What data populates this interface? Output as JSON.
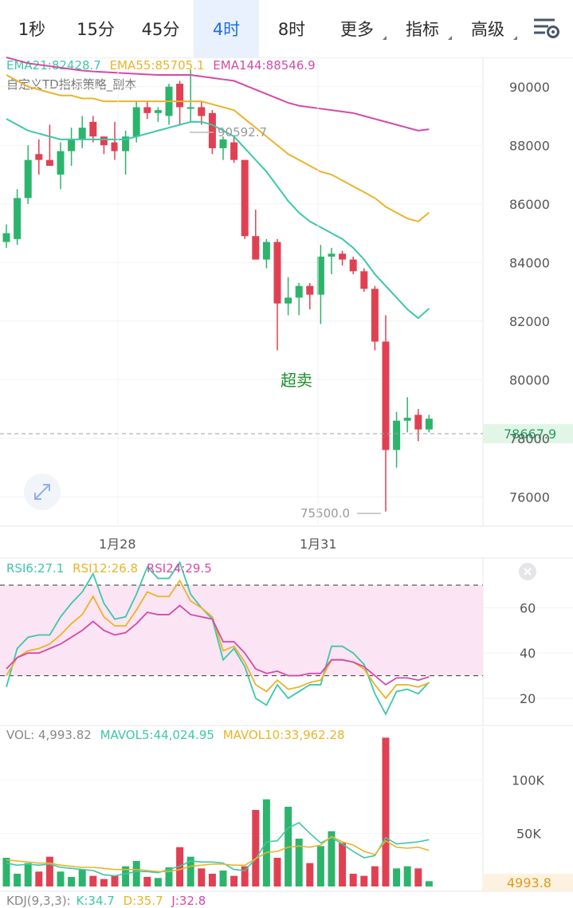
{
  "tabs": [
    {
      "label": "1秒",
      "active": false,
      "dropdown": false
    },
    {
      "label": "15分",
      "active": false,
      "dropdown": false
    },
    {
      "label": "45分",
      "active": false,
      "dropdown": false
    },
    {
      "label": "4时",
      "active": true,
      "dropdown": false
    },
    {
      "label": "8时",
      "active": false,
      "dropdown": false
    },
    {
      "label": "更多",
      "active": false,
      "dropdown": true
    },
    {
      "label": "指标",
      "active": false,
      "dropdown": true
    },
    {
      "label": "高级",
      "active": false,
      "dropdown": true
    }
  ],
  "settings_icon": "chart-settings-icon",
  "expand_icon": "expand-arrows-icon",
  "close_icon": "close-icon",
  "colors": {
    "up": "#2db46c",
    "down": "#e04152",
    "ema21": "#3cc8a8",
    "ema55": "#eab42a",
    "ema144": "#d44aa8",
    "rsi_band": "#fbe4f3"
  },
  "main": {
    "legend": [
      {
        "text": "EMA21:82428.7",
        "color": "#3cc8a8"
      },
      {
        "text": "EMA55:85705.1",
        "color": "#eab42a"
      },
      {
        "text": "EMA144:88546.9",
        "color": "#d44aa8"
      }
    ],
    "strategy_label": "自定义TD指标策略_副本",
    "annotation": "超卖",
    "high_label": "90592.7",
    "low_label": "75500.0",
    "last_price": "78667.9",
    "y_ticks": [
      "90000",
      "88000",
      "86000",
      "84000",
      "82000",
      "80000",
      "78000",
      "76000"
    ],
    "x_ticks": [
      "1月28",
      "1月31"
    ]
  },
  "chart_data": [
    {
      "type": "candlestick",
      "title": "",
      "ylim": [
        75000,
        91000
      ],
      "y_ticks": [
        76000,
        78000,
        80000,
        82000,
        84000,
        86000,
        88000,
        90000
      ],
      "x_ticks": [
        "1月28",
        "1月31"
      ],
      "candles": [
        {
          "o": 84700,
          "h": 85300,
          "l": 84500,
          "c": 85000
        },
        {
          "o": 84800,
          "h": 86500,
          "l": 84600,
          "c": 86200
        },
        {
          "o": 86200,
          "h": 88000,
          "l": 86000,
          "c": 87500
        },
        {
          "o": 87700,
          "h": 88200,
          "l": 87000,
          "c": 87500
        },
        {
          "o": 87500,
          "h": 88700,
          "l": 87300,
          "c": 87300
        },
        {
          "o": 87000,
          "h": 88100,
          "l": 86500,
          "c": 87800
        },
        {
          "o": 87800,
          "h": 88600,
          "l": 87300,
          "c": 88200
        },
        {
          "o": 88200,
          "h": 89000,
          "l": 87900,
          "c": 88600
        },
        {
          "o": 88800,
          "h": 89000,
          "l": 88100,
          "c": 88300
        },
        {
          "o": 88300,
          "h": 88300,
          "l": 87700,
          "c": 88000
        },
        {
          "o": 88100,
          "h": 88800,
          "l": 87500,
          "c": 87800
        },
        {
          "o": 87800,
          "h": 88500,
          "l": 87000,
          "c": 88300
        },
        {
          "o": 88300,
          "h": 89500,
          "l": 88100,
          "c": 89300
        },
        {
          "o": 89300,
          "h": 89500,
          "l": 88900,
          "c": 89100
        },
        {
          "o": 89100,
          "h": 89300,
          "l": 88800,
          "c": 89200
        },
        {
          "o": 89000,
          "h": 90100,
          "l": 88700,
          "c": 90000
        },
        {
          "o": 90100,
          "h": 90200,
          "l": 88700,
          "c": 89300
        },
        {
          "o": 89300,
          "h": 90592.7,
          "l": 88800,
          "c": 89300
        },
        {
          "o": 89300,
          "h": 89500,
          "l": 88700,
          "c": 89000
        },
        {
          "o": 89100,
          "h": 89200,
          "l": 87700,
          "c": 87900
        },
        {
          "o": 87900,
          "h": 88300,
          "l": 87500,
          "c": 88200
        },
        {
          "o": 88100,
          "h": 88300,
          "l": 87400,
          "c": 87500
        },
        {
          "o": 87500,
          "h": 87500,
          "l": 84800,
          "c": 84900
        },
        {
          "o": 84900,
          "h": 85800,
          "l": 84100,
          "c": 84100
        },
        {
          "o": 84100,
          "h": 84800,
          "l": 83800,
          "c": 84700
        },
        {
          "o": 84700,
          "h": 84800,
          "l": 81000,
          "c": 82600
        },
        {
          "o": 82600,
          "h": 83500,
          "l": 82200,
          "c": 82800
        },
        {
          "o": 82800,
          "h": 83300,
          "l": 82200,
          "c": 83200
        },
        {
          "o": 83200,
          "h": 83300,
          "l": 82400,
          "c": 82900
        },
        {
          "o": 82900,
          "h": 84600,
          "l": 81900,
          "c": 84200
        },
        {
          "o": 84200,
          "h": 84500,
          "l": 83600,
          "c": 84300
        },
        {
          "o": 84300,
          "h": 84400,
          "l": 83900,
          "c": 84100
        },
        {
          "o": 84100,
          "h": 84200,
          "l": 83600,
          "c": 83700
        },
        {
          "o": 83700,
          "h": 83800,
          "l": 83000,
          "c": 83100
        },
        {
          "o": 83100,
          "h": 83200,
          "l": 81000,
          "c": 81300
        },
        {
          "o": 81300,
          "h": 82200,
          "l": 75500,
          "c": 77600
        },
        {
          "o": 77600,
          "h": 78900,
          "l": 77000,
          "c": 78600
        },
        {
          "o": 78600,
          "h": 79400,
          "l": 78200,
          "c": 78700
        },
        {
          "o": 78800,
          "h": 79000,
          "l": 77900,
          "c": 78300
        },
        {
          "o": 78300,
          "h": 78800,
          "l": 78200,
          "c": 78667.9
        }
      ],
      "series": [
        {
          "name": "EMA21",
          "values": [
            88900,
            88700,
            88500,
            88400,
            88300,
            88200,
            88200,
            88200,
            88200,
            88200,
            88200,
            88200,
            88300,
            88400,
            88500,
            88600,
            88700,
            88800,
            88800,
            88700,
            88500,
            88300,
            87900,
            87500,
            87100,
            86600,
            86100,
            85700,
            85400,
            85200,
            85000,
            84800,
            84500,
            84100,
            83600,
            83200,
            82800,
            82400,
            82100,
            82428.7
          ]
        },
        {
          "name": "EMA55",
          "values": [
            90400,
            90200,
            90000,
            89900,
            89800,
            89700,
            89700,
            89600,
            89600,
            89500,
            89500,
            89500,
            89500,
            89500,
            89500,
            89500,
            89500,
            89500,
            89500,
            89400,
            89300,
            89200,
            88900,
            88600,
            88300,
            88000,
            87700,
            87500,
            87300,
            87100,
            87000,
            86800,
            86600,
            86400,
            86200,
            85900,
            85700,
            85500,
            85400,
            85705.1
          ]
        },
        {
          "name": "EMA144",
          "values": [
            91000,
            90900,
            90800,
            90750,
            90700,
            90650,
            90600,
            90550,
            90520,
            90500,
            90480,
            90460,
            90440,
            90420,
            90400,
            90400,
            90400,
            90400,
            90350,
            90300,
            90250,
            90200,
            90050,
            89900,
            89750,
            89600,
            89450,
            89350,
            89300,
            89250,
            89200,
            89150,
            89100,
            89000,
            88900,
            88800,
            88700,
            88600,
            88500,
            88546.9
          ]
        }
      ]
    },
    {
      "type": "line",
      "title": "",
      "ylim": [
        8,
        82
      ],
      "y_ticks": [
        20,
        40,
        60
      ],
      "reference_lines": [
        30,
        70
      ],
      "series": [
        {
          "name": "RSI6",
          "values": [
            25,
            42,
            47,
            48,
            48,
            56,
            62,
            67,
            75,
            62,
            55,
            56,
            66,
            78,
            73,
            73,
            80,
            66,
            60,
            55,
            37,
            42,
            34,
            20,
            17,
            26,
            20,
            23,
            26,
            26,
            43,
            43,
            40,
            35,
            22,
            13,
            23,
            24,
            22,
            27.1
          ]
        },
        {
          "name": "RSI12",
          "values": [
            30,
            38,
            41,
            42,
            44,
            48,
            53,
            57,
            65,
            56,
            52,
            52,
            59,
            67,
            65,
            65,
            72,
            63,
            60,
            56,
            41,
            43,
            36,
            26,
            23,
            28,
            24,
            25,
            27,
            28,
            37,
            37,
            36,
            33,
            26,
            20,
            26,
            26,
            25,
            26.8
          ]
        },
        {
          "name": "RSI24",
          "values": [
            33,
            38,
            40,
            40,
            42,
            44,
            47,
            50,
            54,
            50,
            48,
            49,
            53,
            58,
            57,
            57,
            61,
            57,
            56,
            55,
            45,
            45,
            40,
            33,
            31,
            32,
            30,
            30,
            31,
            31,
            37,
            37,
            36,
            34,
            30,
            26,
            29,
            29,
            28,
            29.5
          ]
        }
      ]
    },
    {
      "type": "bar",
      "title": "",
      "ylim": [
        0,
        150000
      ],
      "y_ticks": [
        50000,
        100000
      ],
      "y_tick_labels": [
        "50K",
        "100K"
      ],
      "last_volume_label": "4993.8",
      "values": [
        27000,
        12000,
        22000,
        14000,
        28000,
        14000,
        9000,
        16000,
        10000,
        7000,
        10000,
        19000,
        24000,
        9000,
        8000,
        18000,
        37000,
        28000,
        17000,
        12000,
        15000,
        10000,
        19000,
        72000,
        82000,
        27000,
        75000,
        45000,
        22000,
        38000,
        52000,
        41000,
        12000,
        10000,
        19000,
        140000,
        17000,
        19000,
        17000,
        4993.82
      ],
      "series": [
        {
          "name": "MAVOL5",
          "values": [
            22000,
            20000,
            21000,
            20000,
            21000,
            18000,
            17000,
            16000,
            15000,
            11000,
            10000,
            12000,
            14000,
            14000,
            13000,
            16000,
            19000,
            24000,
            23000,
            23000,
            22000,
            16000,
            15000,
            26000,
            42000,
            43000,
            55000,
            60000,
            50000,
            41000,
            46000,
            40000,
            33000,
            27000,
            29000,
            46000,
            40000,
            41000,
            42000,
            44024.95
          ]
        },
        {
          "name": "MAVOL10",
          "values": [
            25000,
            24000,
            23000,
            22000,
            22000,
            20000,
            19000,
            18000,
            18000,
            17000,
            16000,
            16000,
            16000,
            15000,
            14000,
            14000,
            16000,
            19000,
            20000,
            21000,
            21000,
            20000,
            20000,
            26000,
            32000,
            33000,
            37000,
            38000,
            37000,
            39000,
            47000,
            42000,
            39000,
            33000,
            30000,
            43000,
            37000,
            36000,
            37000,
            33962.28
          ]
        }
      ]
    }
  ],
  "rsi": {
    "legend": [
      {
        "text": "RSI6:27.1",
        "color": "#3cc8a8"
      },
      {
        "text": "RSI12:26.8",
        "color": "#eab42a"
      },
      {
        "text": "RSI24:29.5",
        "color": "#d44aa8"
      }
    ],
    "y_ticks": [
      "60",
      "40",
      "20"
    ]
  },
  "vol": {
    "legend": [
      {
        "text": "VOL: 4,993.82",
        "color": "#888888"
      },
      {
        "text": "MAVOL5:44,024.95",
        "color": "#3cc8a8"
      },
      {
        "text": "MAVOL10:33,962.28",
        "color": "#eab42a"
      }
    ],
    "y_ticks": [
      "100K",
      "50K"
    ],
    "last_label": "4993.8"
  },
  "kdj": {
    "legend": [
      {
        "text": "KDJ(9,3,3):",
        "color": "#888888"
      },
      {
        "text": "K:34.7",
        "color": "#3cc8a8"
      },
      {
        "text": "D:35.7",
        "color": "#eab42a"
      },
      {
        "text": "J:32.8",
        "color": "#d44aa8"
      }
    ]
  }
}
